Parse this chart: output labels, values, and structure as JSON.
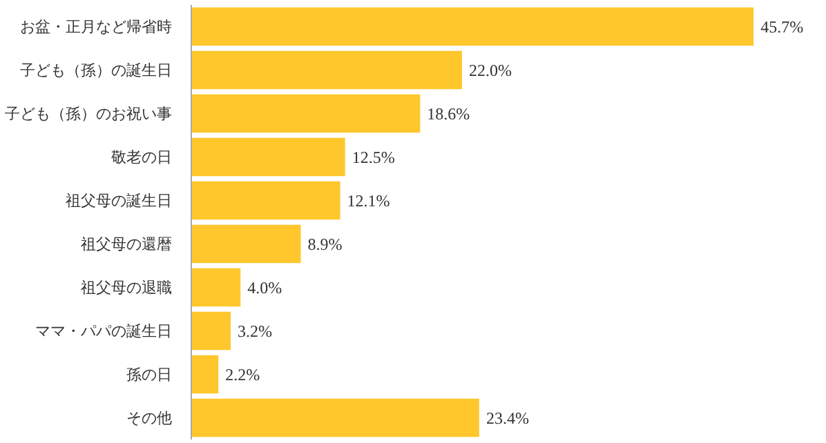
{
  "chart_data": {
    "type": "bar",
    "orientation": "horizontal",
    "categories": [
      "お盆・正月など帰省時",
      "子ども（孫）の誕生日",
      "子ども（孫）のお祝い事",
      "敬老の日",
      "祖父母の誕生日",
      "祖父母の還暦",
      "祖父母の退職",
      "ママ・パパの誕生日",
      "孫の日",
      "その他"
    ],
    "values": [
      45.7,
      22.0,
      18.6,
      12.5,
      12.1,
      8.9,
      4.0,
      3.2,
      2.2,
      23.4
    ],
    "value_labels": [
      "45.7%",
      "22.0%",
      "18.6%",
      "12.5%",
      "12.1%",
      "8.9%",
      "4.0%",
      "3.2%",
      "2.2%",
      "23.4%"
    ],
    "color": "#ffc72c",
    "grid": false
  }
}
